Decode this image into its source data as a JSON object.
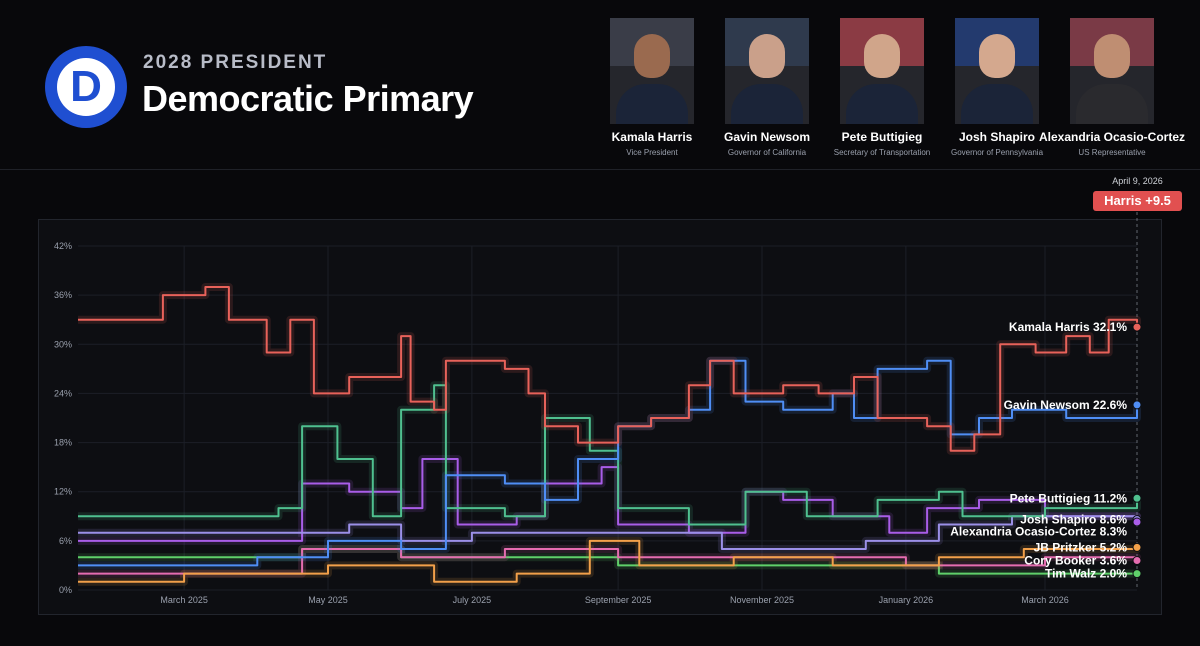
{
  "header": {
    "logo_letter": "D",
    "kicker": "2028 PRESIDENT",
    "title": "Democratic Primary"
  },
  "candidates": [
    {
      "name": "Kamala Harris",
      "role": "Vice President"
    },
    {
      "name": "Gavin Newsom",
      "role": "Governor of California"
    },
    {
      "name": "Pete Buttigieg",
      "role": "Secretary of Transportation"
    },
    {
      "name": "Josh Shapiro",
      "role": "Governor of Pennsylvania"
    },
    {
      "name": "Alexandria Ocasio-Cortez",
      "role": "US Representative"
    }
  ],
  "lead": {
    "date": "April 9, 2026",
    "badge": "Harris +9.5",
    "color": "#e15050"
  },
  "chart_data": {
    "type": "line",
    "x_start": "2025-01-15",
    "x_end": "2026-04-09",
    "x_ticks": [
      {
        "date": "2025-03-01",
        "label": "March 2025"
      },
      {
        "date": "2025-05-01",
        "label": "May 2025"
      },
      {
        "date": "2025-07-01",
        "label": "July 2025"
      },
      {
        "date": "2025-09-01",
        "label": "September 2025"
      },
      {
        "date": "2025-11-01",
        "label": "November 2025"
      },
      {
        "date": "2026-01-01",
        "label": "January 2026"
      },
      {
        "date": "2026-03-01",
        "label": "March 2026"
      }
    ],
    "y_ticks": [
      0,
      6,
      12,
      18,
      24,
      30,
      36,
      42
    ],
    "y_tick_labels": [
      "0%",
      "6%",
      "12%",
      "18%",
      "24%",
      "30%",
      "36%",
      "42%"
    ],
    "ylim": [
      0,
      42
    ],
    "grid": true,
    "series": [
      {
        "name": "Kamala Harris",
        "color": "#e8625a",
        "end_label": "Kamala Harris 32.1%",
        "final": 32.1,
        "points": [
          [
            "2025-01-15",
            33
          ],
          [
            "2025-02-15",
            33
          ],
          [
            "2025-02-20",
            36
          ],
          [
            "2025-03-10",
            37
          ],
          [
            "2025-03-20",
            33
          ],
          [
            "2025-04-05",
            29
          ],
          [
            "2025-04-15",
            33
          ],
          [
            "2025-04-25",
            24
          ],
          [
            "2025-05-10",
            26
          ],
          [
            "2025-06-01",
            31
          ],
          [
            "2025-06-05",
            23
          ],
          [
            "2025-06-15",
            22
          ],
          [
            "2025-06-20",
            28
          ],
          [
            "2025-07-15",
            27
          ],
          [
            "2025-07-25",
            24
          ],
          [
            "2025-08-01",
            20
          ],
          [
            "2025-08-15",
            18
          ],
          [
            "2025-09-01",
            20
          ],
          [
            "2025-09-15",
            21
          ],
          [
            "2025-10-01",
            25
          ],
          [
            "2025-10-10",
            28
          ],
          [
            "2025-10-20",
            24
          ],
          [
            "2025-11-10",
            25
          ],
          [
            "2025-11-25",
            24
          ],
          [
            "2025-12-10",
            26
          ],
          [
            "2025-12-20",
            21
          ],
          [
            "2026-01-10",
            20
          ],
          [
            "2026-01-20",
            17
          ],
          [
            "2026-01-30",
            19
          ],
          [
            "2026-02-10",
            30
          ],
          [
            "2026-02-25",
            29
          ],
          [
            "2026-03-10",
            31
          ],
          [
            "2026-03-20",
            29
          ],
          [
            "2026-03-28",
            33
          ],
          [
            "2026-04-09",
            32.1
          ]
        ]
      },
      {
        "name": "Gavin Newsom",
        "color": "#4f8ef5",
        "end_label": "Gavin Newsom 22.6%",
        "final": 22.6,
        "points": [
          [
            "2025-01-15",
            3
          ],
          [
            "2025-03-01",
            3
          ],
          [
            "2025-04-01",
            4
          ],
          [
            "2025-05-01",
            6
          ],
          [
            "2025-06-01",
            5
          ],
          [
            "2025-06-20",
            14
          ],
          [
            "2025-07-15",
            13
          ],
          [
            "2025-08-01",
            11
          ],
          [
            "2025-08-15",
            16
          ],
          [
            "2025-09-01",
            20
          ],
          [
            "2025-09-15",
            21
          ],
          [
            "2025-10-01",
            22
          ],
          [
            "2025-10-10",
            28
          ],
          [
            "2025-10-25",
            23
          ],
          [
            "2025-11-10",
            22
          ],
          [
            "2025-12-01",
            24
          ],
          [
            "2025-12-10",
            21
          ],
          [
            "2025-12-20",
            27
          ],
          [
            "2026-01-10",
            28
          ],
          [
            "2026-01-20",
            19
          ],
          [
            "2026-02-01",
            21
          ],
          [
            "2026-02-15",
            22
          ],
          [
            "2026-03-10",
            21
          ],
          [
            "2026-04-09",
            22.6
          ]
        ]
      },
      {
        "name": "Pete Buttigieg",
        "color": "#4fc08f",
        "end_label": "Pete Buttigieg 11.2%",
        "final": 11.2,
        "points": [
          [
            "2025-01-15",
            9
          ],
          [
            "2025-04-10",
            10
          ],
          [
            "2025-04-20",
            20
          ],
          [
            "2025-05-05",
            16
          ],
          [
            "2025-05-20",
            9
          ],
          [
            "2025-06-01",
            22
          ],
          [
            "2025-06-15",
            25
          ],
          [
            "2025-06-20",
            10
          ],
          [
            "2025-07-15",
            9
          ],
          [
            "2025-08-01",
            21
          ],
          [
            "2025-08-20",
            17
          ],
          [
            "2025-09-01",
            10
          ],
          [
            "2025-10-01",
            8
          ],
          [
            "2025-10-25",
            12
          ],
          [
            "2025-11-20",
            9
          ],
          [
            "2025-12-20",
            11
          ],
          [
            "2026-01-15",
            12
          ],
          [
            "2026-01-25",
            9
          ],
          [
            "2026-03-01",
            10
          ],
          [
            "2026-04-09",
            11.2
          ]
        ]
      },
      {
        "name": "Josh Shapiro",
        "color": "#9b8fe8",
        "end_label": "Josh Shapiro 8.6%",
        "final": 8.6,
        "points": [
          [
            "2025-01-15",
            7
          ],
          [
            "2025-04-20",
            7
          ],
          [
            "2025-05-10",
            8
          ],
          [
            "2025-06-01",
            6
          ],
          [
            "2025-07-01",
            7
          ],
          [
            "2025-08-01",
            7
          ],
          [
            "2025-09-01",
            7
          ],
          [
            "2025-10-15",
            5
          ],
          [
            "2025-11-15",
            5
          ],
          [
            "2025-12-15",
            6
          ],
          [
            "2026-01-15",
            8
          ],
          [
            "2026-02-15",
            9
          ],
          [
            "2026-04-09",
            8.6
          ]
        ]
      },
      {
        "name": "Alexandria Ocasio-Cortez",
        "color": "#a95de8",
        "end_label": "Alexandria Ocasio-Cortez 8.3%",
        "final": 8.3,
        "points": [
          [
            "2025-01-15",
            6
          ],
          [
            "2025-04-10",
            6
          ],
          [
            "2025-04-20",
            13
          ],
          [
            "2025-05-10",
            12
          ],
          [
            "2025-06-01",
            10
          ],
          [
            "2025-06-10",
            16
          ],
          [
            "2025-06-25",
            8
          ],
          [
            "2025-07-20",
            9
          ],
          [
            "2025-08-01",
            13
          ],
          [
            "2025-08-25",
            15
          ],
          [
            "2025-09-01",
            8
          ],
          [
            "2025-10-01",
            7
          ],
          [
            "2025-10-25",
            12
          ],
          [
            "2025-11-10",
            11
          ],
          [
            "2025-12-01",
            9
          ],
          [
            "2025-12-25",
            7
          ],
          [
            "2026-01-10",
            10
          ],
          [
            "2026-02-01",
            11
          ],
          [
            "2026-03-01",
            9
          ],
          [
            "2026-04-09",
            8.3
          ]
        ]
      },
      {
        "name": "JB Pritzker",
        "color": "#f2a04a",
        "end_label": "JB Pritzker 5.2%",
        "final": 5.2,
        "points": [
          [
            "2025-01-15",
            1
          ],
          [
            "2025-03-01",
            2
          ],
          [
            "2025-05-01",
            3
          ],
          [
            "2025-06-15",
            1
          ],
          [
            "2025-07-20",
            2
          ],
          [
            "2025-08-20",
            6
          ],
          [
            "2025-09-10",
            3
          ],
          [
            "2025-10-20",
            4
          ],
          [
            "2025-12-01",
            3
          ],
          [
            "2026-01-15",
            4
          ],
          [
            "2026-02-20",
            5
          ],
          [
            "2026-04-09",
            5.2
          ]
        ]
      },
      {
        "name": "Cory Booker",
        "color": "#e56cb0",
        "end_label": "Cory Booker 3.6%",
        "final": 3.6,
        "points": [
          [
            "2025-01-15",
            2
          ],
          [
            "2025-04-01",
            2
          ],
          [
            "2025-04-20",
            5
          ],
          [
            "2025-06-01",
            4
          ],
          [
            "2025-07-15",
            5
          ],
          [
            "2025-09-01",
            4
          ],
          [
            "2025-11-01",
            4
          ],
          [
            "2026-01-01",
            3
          ],
          [
            "2026-03-01",
            4
          ],
          [
            "2026-04-09",
            3.6
          ]
        ]
      },
      {
        "name": "Tim Walz",
        "color": "#5fd06a",
        "end_label": "Tim Walz 2.0%",
        "final": 2.0,
        "points": [
          [
            "2025-01-15",
            4
          ],
          [
            "2025-03-15",
            4
          ],
          [
            "2025-04-20",
            5
          ],
          [
            "2025-06-01",
            4
          ],
          [
            "2025-07-01",
            4
          ],
          [
            "2025-09-01",
            3
          ],
          [
            "2025-11-01",
            3
          ],
          [
            "2025-12-15",
            3
          ],
          [
            "2026-01-15",
            2
          ],
          [
            "2026-02-15",
            2
          ],
          [
            "2026-04-09",
            2.0
          ]
        ]
      }
    ]
  }
}
